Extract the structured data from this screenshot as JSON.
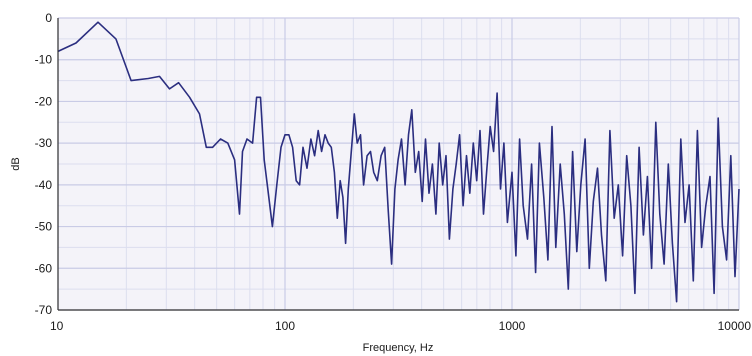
{
  "chart_data": {
    "type": "line",
    "xlabel": "Frequency, Hz",
    "ylabel": "dB",
    "xscale": "log",
    "xlim": [
      10,
      10000
    ],
    "ylim": [
      -70,
      0
    ],
    "x_ticks": [
      10,
      100,
      1000,
      10000
    ],
    "x_tick_labels": [
      "10",
      "100",
      "1000",
      "10000"
    ],
    "y_ticks": [
      0,
      -10,
      -20,
      -30,
      -40,
      -50,
      -60,
      -70
    ],
    "y_tick_labels": [
      "0",
      "-10",
      "-20",
      "-30",
      "-40",
      "-50",
      "-60",
      "-70"
    ],
    "grid": true,
    "legend": "none",
    "colors": {
      "line": "#2b2e80",
      "plot_background": "#f4f3f9",
      "grid_major": "#c9cbe6",
      "grid_minor": "#dcdeef"
    },
    "series": [
      {
        "x": [
          10,
          12,
          15,
          18,
          21,
          25,
          28,
          31,
          34,
          38,
          42,
          45,
          48,
          52,
          56,
          60,
          63,
          65,
          68,
          72,
          75,
          78,
          81,
          84,
          88,
          92,
          96,
          100,
          104,
          108,
          112,
          116,
          120,
          125,
          130,
          135,
          140,
          145,
          150,
          155,
          160,
          165,
          170,
          175,
          180,
          185,
          190,
          196,
          202,
          208,
          215,
          222,
          230,
          238,
          246,
          255,
          265,
          275,
          285,
          295,
          305,
          315,
          326,
          338,
          350,
          362,
          375,
          388,
          402,
          416,
          431,
          446,
          462,
          478,
          495,
          512,
          530,
          549,
          568,
          588,
          609,
          630,
          652,
          675,
          699,
          723,
          749,
          775,
          802,
          830,
          860,
          890,
          921,
          954,
          1000,
          1040,
          1080,
          1120,
          1170,
          1220,
          1270,
          1320,
          1380,
          1440,
          1500,
          1560,
          1630,
          1700,
          1770,
          1850,
          1930,
          2010,
          2100,
          2190,
          2280,
          2380,
          2480,
          2590,
          2700,
          2820,
          2940,
          3070,
          3200,
          3340,
          3480,
          3630,
          3790,
          3950,
          4120,
          4300,
          4480,
          4680,
          4880,
          5090,
          5310,
          5540,
          5780,
          6030,
          6290,
          6560,
          6840,
          7140,
          7450,
          7770,
          8100,
          8450,
          8820,
          9200,
          9600,
          10000
        ],
        "values": [
          -8,
          -6,
          -1,
          -5,
          -15,
          -14.5,
          -14,
          -17,
          -15.5,
          -19,
          -23,
          -31,
          -31,
          -29,
          -30,
          -34,
          -47,
          -32,
          -29,
          -30,
          -19,
          -19,
          -34,
          -41,
          -50,
          -40,
          -31,
          -28,
          -28,
          -31,
          -39,
          -40,
          -31,
          -36,
          -29,
          -33,
          -27,
          -32,
          -28,
          -30,
          -31,
          -37,
          -48,
          -39,
          -43,
          -54,
          -41,
          -32,
          -23,
          -30,
          -28,
          -40,
          -33,
          -32,
          -37,
          -39,
          -33,
          -31,
          -46,
          -59,
          -41,
          -34,
          -29,
          -40,
          -28,
          -22,
          -37,
          -32,
          -44,
          -29,
          -42,
          -35,
          -47,
          -30,
          -40,
          -33,
          -53,
          -41,
          -35,
          -28,
          -45,
          -33,
          -42,
          -30,
          -39,
          -27,
          -47,
          -36,
          -26,
          -32,
          -18,
          -41,
          -30,
          -49,
          -37,
          -57,
          -29,
          -45,
          -53,
          -35,
          -61,
          -30,
          -43,
          -58,
          -26,
          -55,
          -35,
          -47,
          -65,
          -32,
          -56,
          -40,
          -29,
          -60,
          -44,
          -36,
          -52,
          -63,
          -27,
          -48,
          -40,
          -57,
          -33,
          -45,
          -66,
          -31,
          -52,
          -38,
          -60,
          -25,
          -47,
          -59,
          -35,
          -54,
          -68,
          -29,
          -49,
          -40,
          -63,
          -27,
          -55,
          -45,
          -38,
          -66,
          -24,
          -50,
          -58,
          -33,
          -62,
          -41
        ]
      }
    ]
  }
}
